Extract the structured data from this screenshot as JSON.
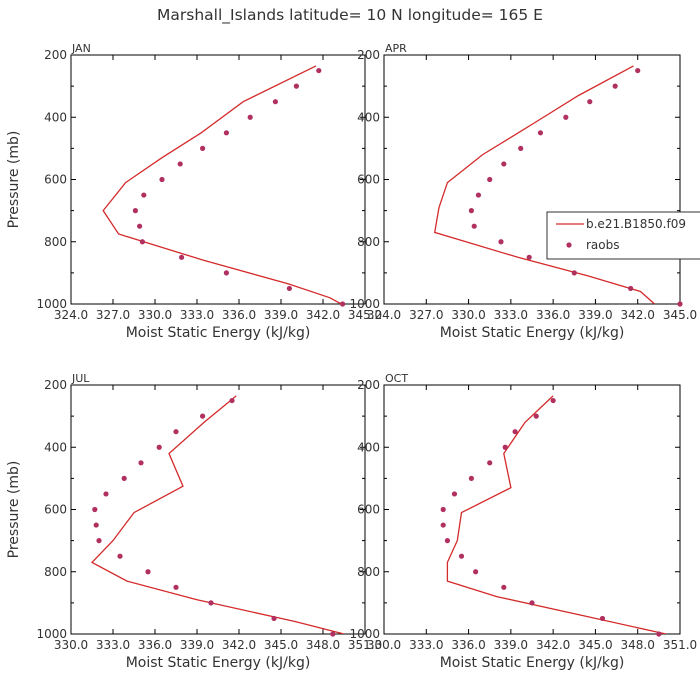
{
  "title": "Marshall_Islands  latitude= 10 N longitude= 165 E",
  "colors": {
    "model": "#d42a2a",
    "obs": "#b03060",
    "axis": "#000000",
    "text": "#333333"
  },
  "legend": {
    "model_label": "b.e21.B1850.f09",
    "obs_label": "raobs"
  },
  "chart_data": [
    {
      "type": "line",
      "panel": "JAN",
      "xlabel": "Moist Static Energy (kJ/kg)",
      "ylabel": "Pressure (mb)",
      "xlim": [
        324.0,
        345.0
      ],
      "ylim": [
        200,
        1000
      ],
      "y_inverted": true,
      "xticks": [
        "324.0",
        "327.0",
        "330.0",
        "333.0",
        "336.0",
        "339.0",
        "342.0",
        "345.0"
      ],
      "yticks": [
        "200",
        "400",
        "600",
        "800",
        "1000"
      ],
      "series": [
        {
          "key": "model",
          "mode": "line",
          "points": [
            [
              341.5,
              235
            ],
            [
              336.3,
              350
            ],
            [
              333.3,
              450
            ],
            [
              330.5,
              530
            ],
            [
              327.9,
              610
            ],
            [
              326.3,
              700
            ],
            [
              327.4,
              775
            ],
            [
              333.5,
              860
            ],
            [
              339.5,
              935
            ],
            [
              342.5,
              980
            ],
            [
              343.3,
              1000
            ]
          ]
        },
        {
          "key": "obs",
          "mode": "markers",
          "points": [
            [
              341.7,
              250
            ],
            [
              340.1,
              300
            ],
            [
              338.6,
              350
            ],
            [
              336.8,
              400
            ],
            [
              335.1,
              450
            ],
            [
              333.4,
              500
            ],
            [
              331.8,
              550
            ],
            [
              330.5,
              600
            ],
            [
              329.2,
              650
            ],
            [
              328.6,
              700
            ],
            [
              328.9,
              750
            ],
            [
              329.1,
              800
            ],
            [
              331.9,
              850
            ],
            [
              335.1,
              900
            ],
            [
              339.6,
              950
            ],
            [
              343.4,
              1000
            ]
          ]
        }
      ]
    },
    {
      "type": "line",
      "panel": "APR",
      "xlabel": "Moist Static Energy (kJ/kg)",
      "ylabel": "",
      "xlim": [
        324.0,
        345.0
      ],
      "ylim": [
        200,
        1000
      ],
      "y_inverted": true,
      "xticks": [
        "324.0",
        "327.0",
        "330.0",
        "333.0",
        "336.0",
        "339.0",
        "342.0",
        "345.0"
      ],
      "yticks": [
        "200",
        "400",
        "600",
        "800",
        "1000"
      ],
      "series": [
        {
          "key": "model",
          "mode": "line",
          "points": [
            [
              341.7,
              235
            ],
            [
              337.8,
              330
            ],
            [
              334.6,
              420
            ],
            [
              331.0,
              520
            ],
            [
              328.5,
              610
            ],
            [
              327.9,
              690
            ],
            [
              327.6,
              770
            ],
            [
              333.5,
              850
            ],
            [
              338.5,
              910
            ],
            [
              342.2,
              960
            ],
            [
              343.2,
              1000
            ]
          ]
        },
        {
          "key": "obs",
          "mode": "markers",
          "points": [
            [
              342.0,
              250
            ],
            [
              340.4,
              300
            ],
            [
              338.6,
              350
            ],
            [
              336.9,
              400
            ],
            [
              335.1,
              450
            ],
            [
              333.7,
              500
            ],
            [
              332.5,
              550
            ],
            [
              331.5,
              600
            ],
            [
              330.7,
              650
            ],
            [
              330.2,
              700
            ],
            [
              330.4,
              750
            ],
            [
              332.3,
              800
            ],
            [
              334.3,
              850
            ],
            [
              337.5,
              900
            ],
            [
              341.5,
              950
            ],
            [
              345.0,
              1000
            ]
          ]
        }
      ]
    },
    {
      "type": "line",
      "panel": "JUL",
      "xlabel": "Moist Static Energy (kJ/kg)",
      "ylabel": "Pressure (mb)",
      "xlim": [
        330.0,
        351.0
      ],
      "ylim": [
        200,
        1000
      ],
      "y_inverted": true,
      "xticks": [
        "330.0",
        "333.0",
        "336.0",
        "339.0",
        "342.0",
        "345.0",
        "348.0",
        "351.0"
      ],
      "yticks": [
        "200",
        "400",
        "600",
        "800",
        "1000"
      ],
      "series": [
        {
          "key": "model",
          "mode": "line",
          "points": [
            [
              341.8,
              235
            ],
            [
              339.5,
              320
            ],
            [
              337.0,
              420
            ],
            [
              338.0,
              525
            ],
            [
              334.5,
              610
            ],
            [
              333.0,
              700
            ],
            [
              331.5,
              770
            ],
            [
              334.0,
              830
            ],
            [
              339.0,
              890
            ],
            [
              346.0,
              960
            ],
            [
              349.5,
              1000
            ]
          ]
        },
        {
          "key": "obs",
          "mode": "markers",
          "points": [
            [
              341.5,
              250
            ],
            [
              339.4,
              300
            ],
            [
              337.5,
              350
            ],
            [
              336.3,
              400
            ],
            [
              335.0,
              450
            ],
            [
              333.8,
              500
            ],
            [
              332.5,
              550
            ],
            [
              331.7,
              600
            ],
            [
              331.8,
              650
            ],
            [
              332.0,
              700
            ],
            [
              333.5,
              750
            ],
            [
              335.5,
              800
            ],
            [
              337.5,
              850
            ],
            [
              340.0,
              900
            ],
            [
              344.5,
              950
            ],
            [
              348.7,
              1000
            ]
          ]
        }
      ]
    },
    {
      "type": "line",
      "panel": "OCT",
      "xlabel": "Moist Static Energy (kJ/kg)",
      "ylabel": "",
      "xlim": [
        330.0,
        351.0
      ],
      "ylim": [
        200,
        1000
      ],
      "y_inverted": true,
      "xticks": [
        "330.0",
        "333.0",
        "336.0",
        "339.0",
        "342.0",
        "345.0",
        "348.0",
        "351.0"
      ],
      "yticks": [
        "200",
        "400",
        "600",
        "800",
        "1000"
      ],
      "series": [
        {
          "key": "model",
          "mode": "line",
          "points": [
            [
              342.0,
              235
            ],
            [
              340.0,
              320
            ],
            [
              338.5,
              420
            ],
            [
              339.0,
              530
            ],
            [
              335.5,
              610
            ],
            [
              335.2,
              700
            ],
            [
              334.5,
              770
            ],
            [
              334.5,
              830
            ],
            [
              338.0,
              880
            ],
            [
              344.0,
              940
            ],
            [
              350.0,
              1000
            ]
          ]
        },
        {
          "key": "obs",
          "mode": "markers",
          "points": [
            [
              342.0,
              250
            ],
            [
              340.8,
              300
            ],
            [
              339.3,
              350
            ],
            [
              338.6,
              400
            ],
            [
              337.5,
              450
            ],
            [
              336.2,
              500
            ],
            [
              335.0,
              550
            ],
            [
              334.2,
              600
            ],
            [
              334.2,
              650
            ],
            [
              334.5,
              700
            ],
            [
              335.5,
              750
            ],
            [
              336.5,
              800
            ],
            [
              338.5,
              850
            ],
            [
              340.5,
              900
            ],
            [
              345.5,
              950
            ],
            [
              349.5,
              1000
            ]
          ]
        }
      ]
    }
  ]
}
